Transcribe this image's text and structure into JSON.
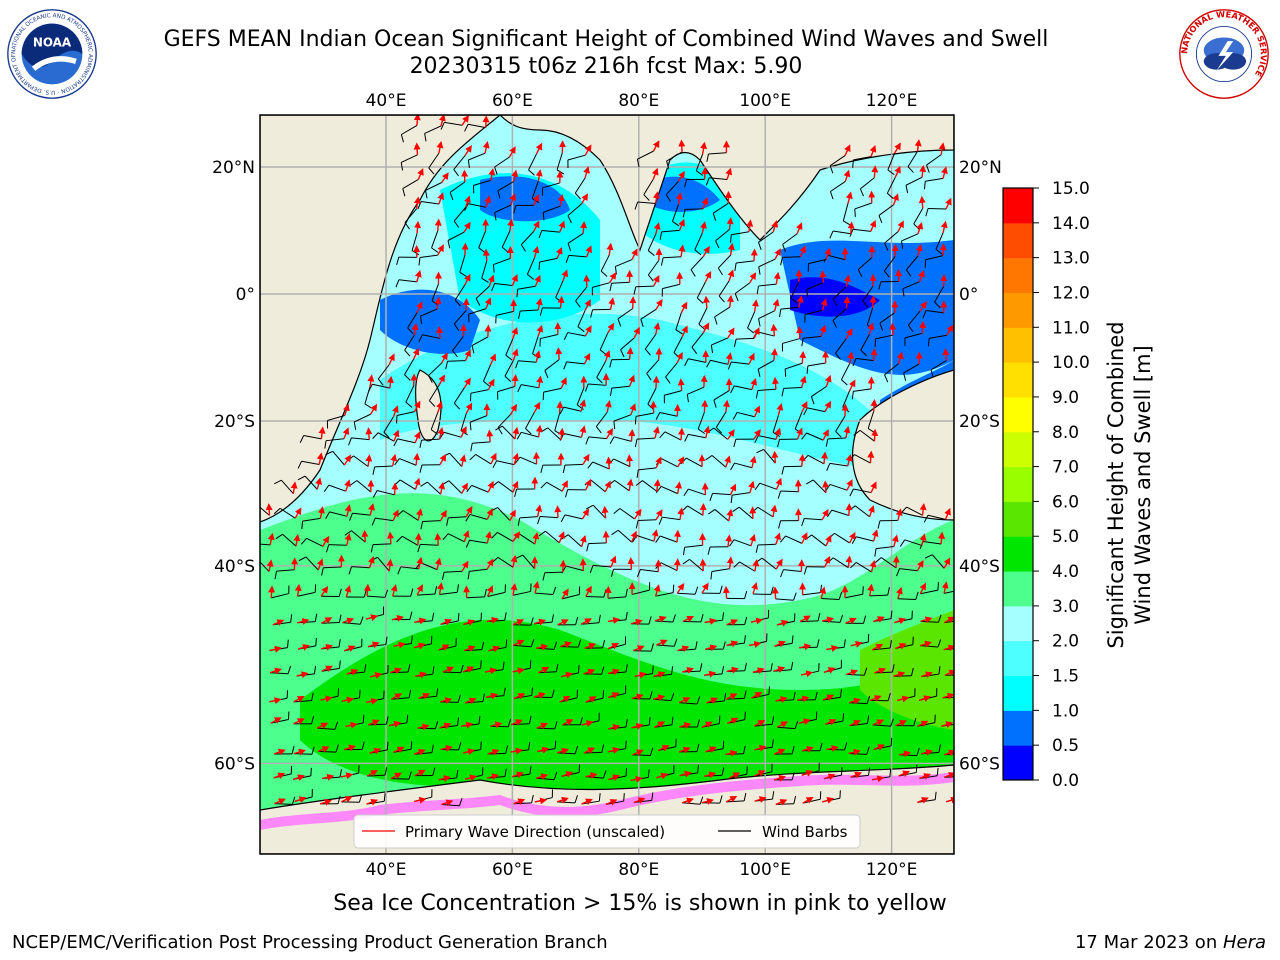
{
  "title": {
    "line1": "GEFS MEAN Indian Ocean Significant Height of Combined Wind Waves and Swell",
    "line2": "20230315 t06z 216h fcst   Max: 5.90"
  },
  "map": {
    "lon_labels": [
      "40°E",
      "60°E",
      "80°E",
      "100°E",
      "120°E"
    ],
    "lat_labels_left": [
      "20°N",
      "0°",
      "20°S",
      "40°S",
      "60°S"
    ],
    "lat_labels_right": [
      "20°N",
      "0°",
      "20°S",
      "40°S",
      "60°S"
    ],
    "lon_values": [
      40,
      60,
      80,
      100,
      120
    ],
    "lat_values": [
      20,
      0,
      -20,
      -40,
      -60
    ],
    "land_color": "#efecdc",
    "grid_color": "#b0b0b0"
  },
  "legend": {
    "wave_label": "Primary Wave Direction (unscaled)",
    "barb_label": "Wind Barbs",
    "wave_color": "#ff0000",
    "barb_color": "#000000"
  },
  "colorbar": {
    "label_line1": "Significant Height of Combined",
    "label_line2": "Wind Waves and Swell [m]",
    "ticks": [
      "0.0",
      "0.5",
      "1.0",
      "1.5",
      "2.0",
      "3.0",
      "4.0",
      "5.0",
      "6.0",
      "7.0",
      "8.0",
      "9.0",
      "10.0",
      "11.0",
      "12.0",
      "13.0",
      "14.0",
      "15.0"
    ],
    "colors": [
      "#0000ff",
      "#0070ff",
      "#00ffff",
      "#4dffff",
      "#a6ffff",
      "#4dff8c",
      "#00e600",
      "#5ae600",
      "#99ff00",
      "#ccff00",
      "#ffff00",
      "#ffe000",
      "#ffc000",
      "#ff9900",
      "#ff7700",
      "#ff4d00",
      "#ff0000"
    ]
  },
  "caption": "Sea Ice Concentration > 15% is shown in pink to yellow",
  "footer": {
    "left": "NCEP/EMC/Verification Post Processing Product Generation Branch",
    "right_date": "17 Mar 2023 on ",
    "right_host": "Hera"
  },
  "logos": {
    "noaa_text": "NOAA",
    "noaa_ring": "NATIONAL OCEANIC AND ATMOSPHERIC ADMINISTRATION · U.S. DEPARTMENT OF COMMERCE",
    "nws_ring": "NATIONAL WEATHER SERVICE"
  }
}
